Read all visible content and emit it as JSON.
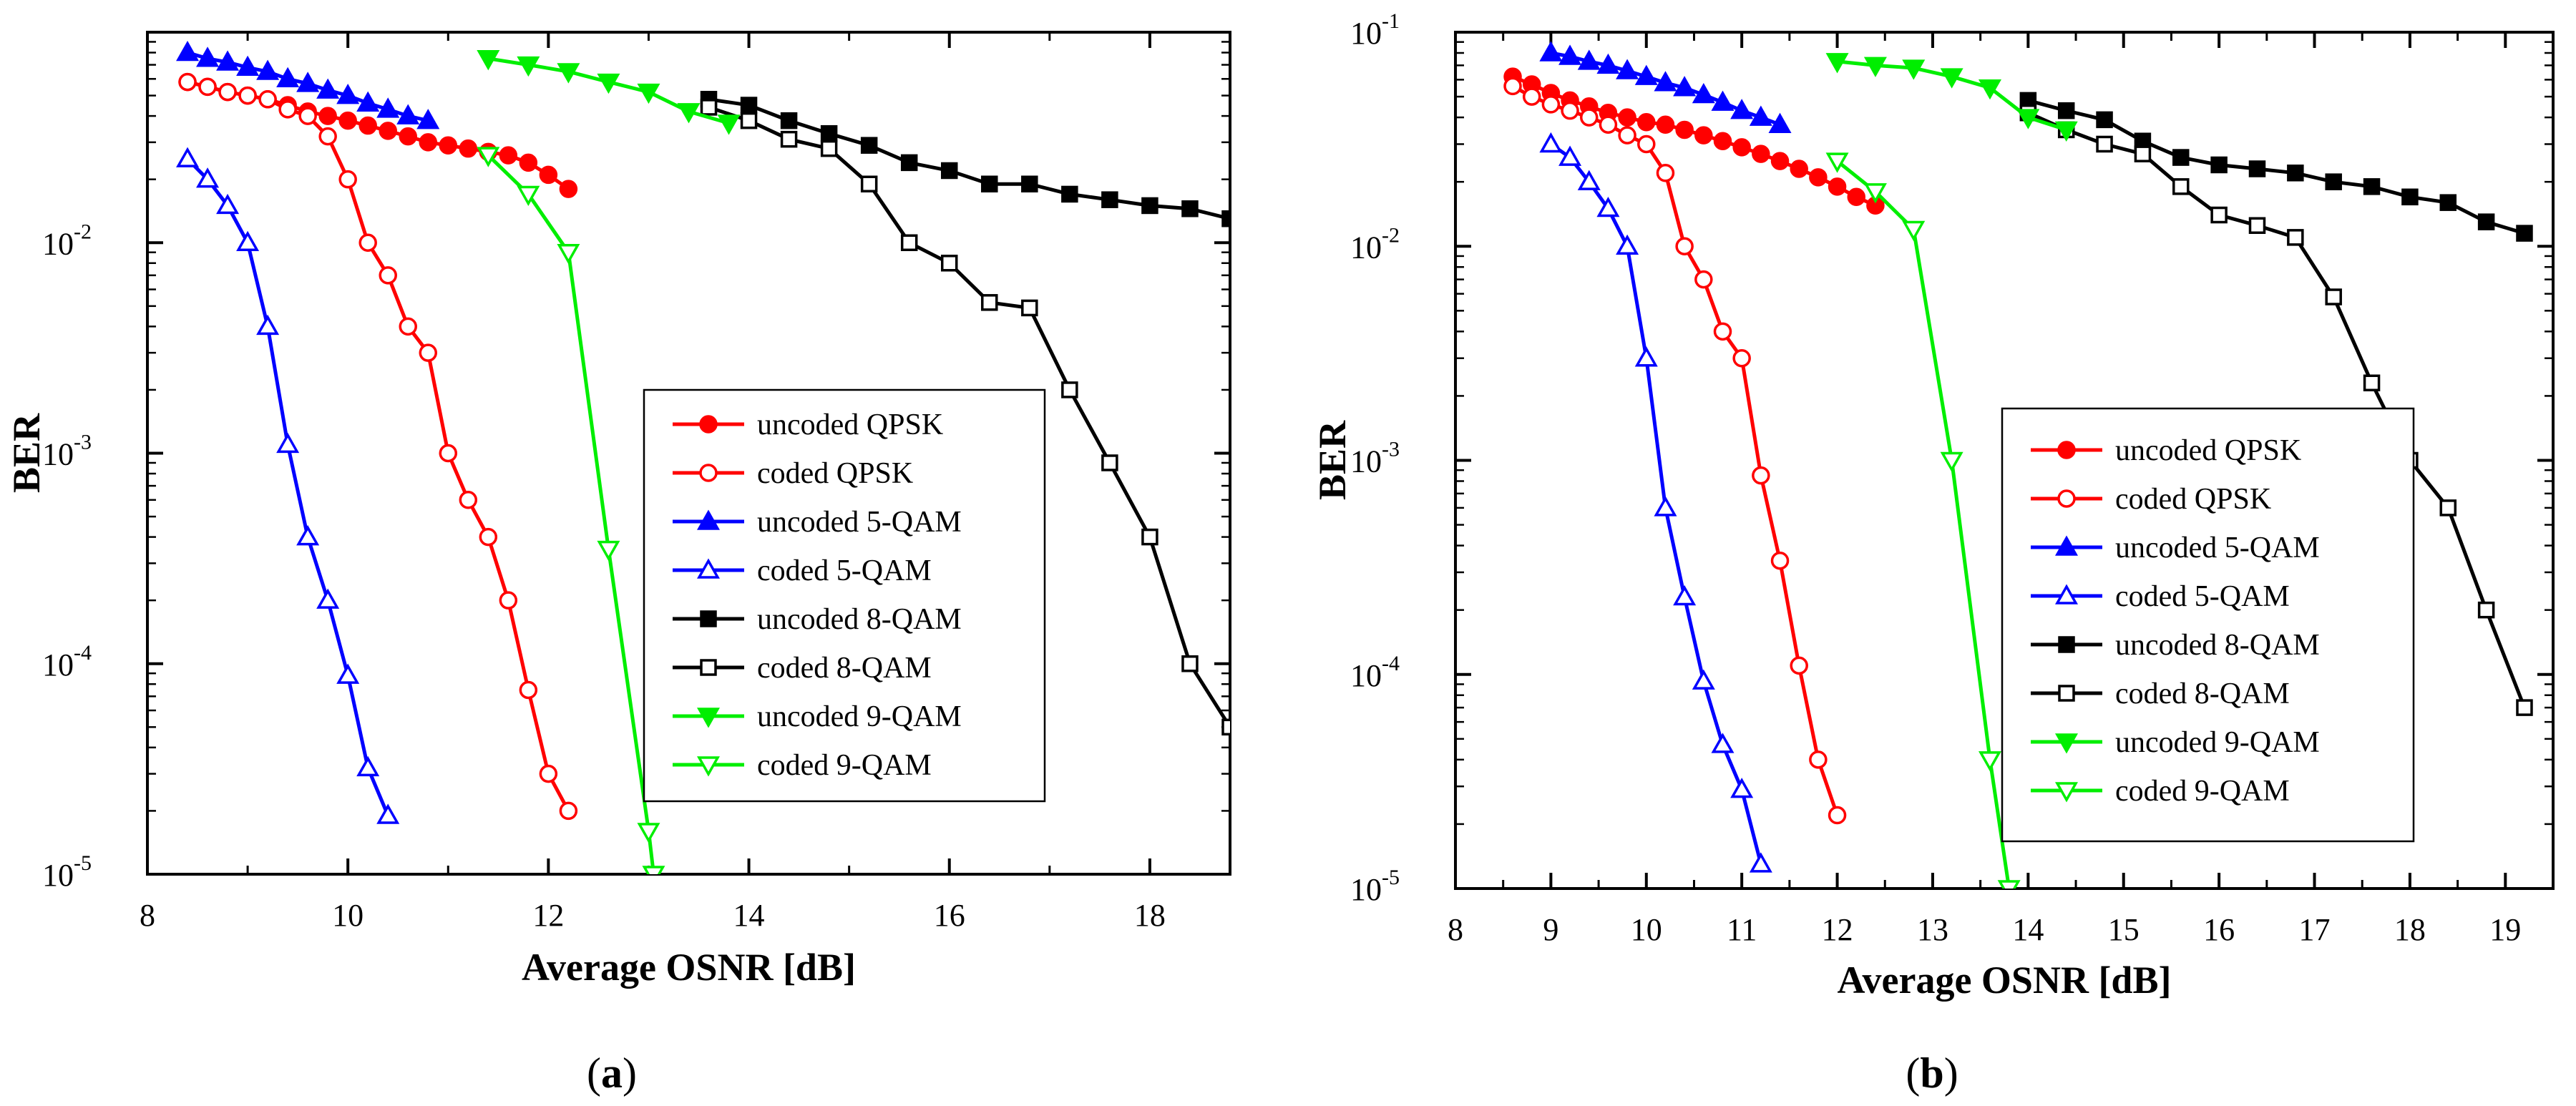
{
  "figure": {
    "captions": [
      {
        "open": "(",
        "letter": "a",
        "close": ")"
      },
      {
        "open": "(",
        "letter": "b",
        "close": ")"
      }
    ]
  },
  "chart_data": [
    {
      "type": "line",
      "id": "a",
      "xlabel": "Average OSNR [dB]",
      "ylabel": "BER",
      "yscale": "log",
      "xlim": [
        8,
        18.8
      ],
      "ylim": [
        1e-05,
        0.1
      ],
      "xticks": [
        8,
        10,
        12,
        14,
        16,
        18
      ],
      "yticks": [
        0.01,
        0.001,
        0.0001,
        1e-05
      ],
      "ytick_exponents": [
        "-2",
        "-3",
        "-4",
        "-5"
      ],
      "ytick_mantissa": "10",
      "top_label": "",
      "legend_position": "center-right",
      "series": [
        {
          "name": "uncoded QPSK",
          "color": "#ff0000",
          "marker": "circle",
          "filled": true,
          "x": [
            8.4,
            8.6,
            8.8,
            9.0,
            9.2,
            9.4,
            9.6,
            9.8,
            10.0,
            10.2,
            10.4,
            10.6,
            10.8,
            11.0,
            11.2,
            11.4,
            11.6,
            11.8,
            12.0,
            12.2
          ],
          "y": [
            0.058,
            0.055,
            0.052,
            0.05,
            0.048,
            0.045,
            0.042,
            0.04,
            0.038,
            0.036,
            0.034,
            0.032,
            0.03,
            0.029,
            0.028,
            0.027,
            0.026,
            0.024,
            0.021,
            0.018
          ]
        },
        {
          "name": "coded QPSK",
          "color": "#ff0000",
          "marker": "circle",
          "filled": false,
          "x": [
            8.4,
            8.6,
            8.8,
            9.0,
            9.2,
            9.4,
            9.6,
            9.8,
            10.0,
            10.2,
            10.4,
            10.6,
            10.8,
            11.0,
            11.2,
            11.4,
            11.6,
            11.8,
            12.0,
            12.2
          ],
          "y": [
            0.058,
            0.055,
            0.052,
            0.05,
            0.048,
            0.043,
            0.04,
            0.032,
            0.02,
            0.01,
            0.007,
            0.004,
            0.003,
            0.001,
            0.0006,
            0.0004,
            0.0002,
            7.5e-05,
            3e-05,
            2e-05
          ]
        },
        {
          "name": "uncoded 5-QAM",
          "color": "#0000ff",
          "marker": "triangle-up",
          "filled": true,
          "x": [
            8.4,
            8.6,
            8.8,
            9.0,
            9.2,
            9.4,
            9.6,
            9.8,
            10.0,
            10.2,
            10.4,
            10.6,
            10.8
          ],
          "y": [
            0.08,
            0.075,
            0.072,
            0.068,
            0.065,
            0.06,
            0.057,
            0.053,
            0.05,
            0.046,
            0.043,
            0.04,
            0.038
          ]
        },
        {
          "name": "coded 5-QAM",
          "color": "#0000ff",
          "marker": "triangle-up",
          "filled": false,
          "x": [
            8.4,
            8.6,
            8.8,
            9.0,
            9.2,
            9.4,
            9.6,
            9.8,
            10.0,
            10.2,
            10.4
          ],
          "y": [
            0.025,
            0.02,
            0.015,
            0.01,
            0.004,
            0.0011,
            0.0004,
            0.0002,
            8.8e-05,
            3.2e-05,
            1.9e-05
          ]
        },
        {
          "name": "uncoded 8-QAM",
          "color": "#000000",
          "marker": "square",
          "filled": true,
          "x": [
            13.6,
            14.0,
            14.4,
            14.8,
            15.2,
            15.6,
            16.0,
            16.4,
            16.8,
            17.2,
            17.6,
            18.0,
            18.4,
            18.8
          ],
          "y": [
            0.048,
            0.045,
            0.038,
            0.033,
            0.029,
            0.024,
            0.022,
            0.019,
            0.019,
            0.017,
            0.016,
            0.015,
            0.0145,
            0.013
          ]
        },
        {
          "name": "coded 8-QAM",
          "color": "#000000",
          "marker": "square",
          "filled": false,
          "x": [
            13.6,
            14.0,
            14.4,
            14.8,
            15.2,
            15.6,
            16.0,
            16.4,
            16.8,
            17.2,
            17.6,
            18.0,
            18.4,
            18.8
          ],
          "y": [
            0.044,
            0.038,
            0.031,
            0.028,
            0.019,
            0.01,
            0.008,
            0.0052,
            0.0049,
            0.002,
            0.0009,
            0.0004,
            0.0001,
            5e-05
          ]
        },
        {
          "name": "uncoded 9-QAM",
          "color": "#00ee00",
          "marker": "triangle-down",
          "filled": true,
          "x": [
            11.4,
            11.8,
            12.2,
            12.6,
            13.0,
            13.4,
            13.8
          ],
          "y": [
            0.075,
            0.07,
            0.065,
            0.058,
            0.052,
            0.042,
            0.037
          ]
        },
        {
          "name": "coded 9-QAM",
          "color": "#00ee00",
          "marker": "triangle-down",
          "filled": false,
          "x": [
            11.4,
            11.8,
            12.2,
            12.6,
            13.0,
            13.05
          ],
          "y": [
            0.026,
            0.017,
            0.009,
            0.00035,
            1.6e-05,
            1e-05
          ]
        }
      ]
    },
    {
      "type": "line",
      "id": "b",
      "xlabel": "Average OSNR [dB]",
      "ylabel": "BER",
      "yscale": "log",
      "xlim": [
        8,
        19.5
      ],
      "ylim": [
        1e-05,
        0.1
      ],
      "xticks": [
        8,
        9,
        10,
        11,
        12,
        13,
        14,
        15,
        16,
        17,
        18,
        19
      ],
      "yticks": [
        0.1,
        0.01,
        0.001,
        0.0001,
        1e-05
      ],
      "ytick_exponents": [
        "-1",
        "-2",
        "-3",
        "-4",
        "-5"
      ],
      "ytick_mantissa": "10",
      "legend_position": "center-right",
      "series": [
        {
          "name": "uncoded QPSK",
          "color": "#ff0000",
          "marker": "circle",
          "filled": true,
          "x": [
            8.6,
            8.8,
            9.0,
            9.2,
            9.4,
            9.6,
            9.8,
            10.0,
            10.2,
            10.4,
            10.6,
            10.8,
            11.0,
            11.2,
            11.4,
            11.6,
            11.8,
            12.0,
            12.2,
            12.4
          ],
          "y": [
            0.062,
            0.057,
            0.052,
            0.048,
            0.045,
            0.042,
            0.04,
            0.038,
            0.037,
            0.035,
            0.033,
            0.031,
            0.029,
            0.027,
            0.025,
            0.023,
            0.021,
            0.019,
            0.017,
            0.0155
          ]
        },
        {
          "name": "coded QPSK",
          "color": "#ff0000",
          "marker": "circle",
          "filled": false,
          "x": [
            8.6,
            8.8,
            9.0,
            9.2,
            9.4,
            9.6,
            9.8,
            10.0,
            10.2,
            10.4,
            10.6,
            10.8,
            11.0,
            11.2,
            11.4,
            11.6,
            11.8,
            12.0
          ],
          "y": [
            0.056,
            0.05,
            0.046,
            0.043,
            0.04,
            0.037,
            0.033,
            0.03,
            0.022,
            0.01,
            0.007,
            0.004,
            0.003,
            0.00085,
            0.00034,
            0.00011,
            4e-05,
            2.2e-05
          ]
        },
        {
          "name": "uncoded 5-QAM",
          "color": "#0000ff",
          "marker": "triangle-up",
          "filled": true,
          "x": [
            9.0,
            9.2,
            9.4,
            9.6,
            9.8,
            10.0,
            10.2,
            10.4,
            10.6,
            10.8,
            11.0,
            11.2,
            11.4
          ],
          "y": [
            0.08,
            0.077,
            0.073,
            0.07,
            0.066,
            0.062,
            0.058,
            0.055,
            0.051,
            0.047,
            0.043,
            0.04,
            0.037
          ]
        },
        {
          "name": "coded 5-QAM",
          "color": "#0000ff",
          "marker": "triangle-up",
          "filled": false,
          "x": [
            9.0,
            9.2,
            9.4,
            9.6,
            9.8,
            10.0,
            10.2,
            10.4,
            10.6,
            10.8,
            11.0,
            11.2
          ],
          "y": [
            0.03,
            0.026,
            0.02,
            0.015,
            0.01,
            0.003,
            0.0006,
            0.00023,
            9.3e-05,
            4.7e-05,
            2.9e-05,
            1.3e-05
          ]
        },
        {
          "name": "uncoded 8-QAM",
          "color": "#000000",
          "marker": "square",
          "filled": true,
          "x": [
            14.0,
            14.4,
            14.8,
            15.2,
            15.6,
            16.0,
            16.4,
            16.8,
            17.2,
            17.6,
            18.0,
            18.4,
            18.8,
            19.2
          ],
          "y": [
            0.048,
            0.043,
            0.039,
            0.031,
            0.026,
            0.024,
            0.023,
            0.022,
            0.02,
            0.019,
            0.017,
            0.016,
            0.013,
            0.0115
          ]
        },
        {
          "name": "coded 8-QAM",
          "color": "#000000",
          "marker": "square",
          "filled": false,
          "x": [
            14.0,
            14.4,
            14.8,
            15.2,
            15.6,
            16.0,
            16.4,
            16.8,
            17.2,
            17.6,
            18.0,
            18.4,
            18.8,
            19.2
          ],
          "y": [
            0.042,
            0.035,
            0.03,
            0.027,
            0.019,
            0.014,
            0.0125,
            0.011,
            0.0058,
            0.0023,
            0.001,
            0.0006,
            0.0002,
            7e-05
          ]
        },
        {
          "name": "uncoded 9-QAM",
          "color": "#00ee00",
          "marker": "triangle-down",
          "filled": true,
          "x": [
            12.0,
            12.4,
            12.8,
            13.2,
            13.6,
            14.0,
            14.4
          ],
          "y": [
            0.073,
            0.07,
            0.068,
            0.062,
            0.055,
            0.04,
            0.035
          ]
        },
        {
          "name": "coded 9-QAM",
          "color": "#00ee00",
          "marker": "triangle-down",
          "filled": false,
          "x": [
            12.0,
            12.4,
            12.8,
            13.2,
            13.6,
            13.8
          ],
          "y": [
            0.025,
            0.018,
            0.012,
            0.001,
            4e-05,
            1e-05
          ]
        }
      ]
    }
  ]
}
